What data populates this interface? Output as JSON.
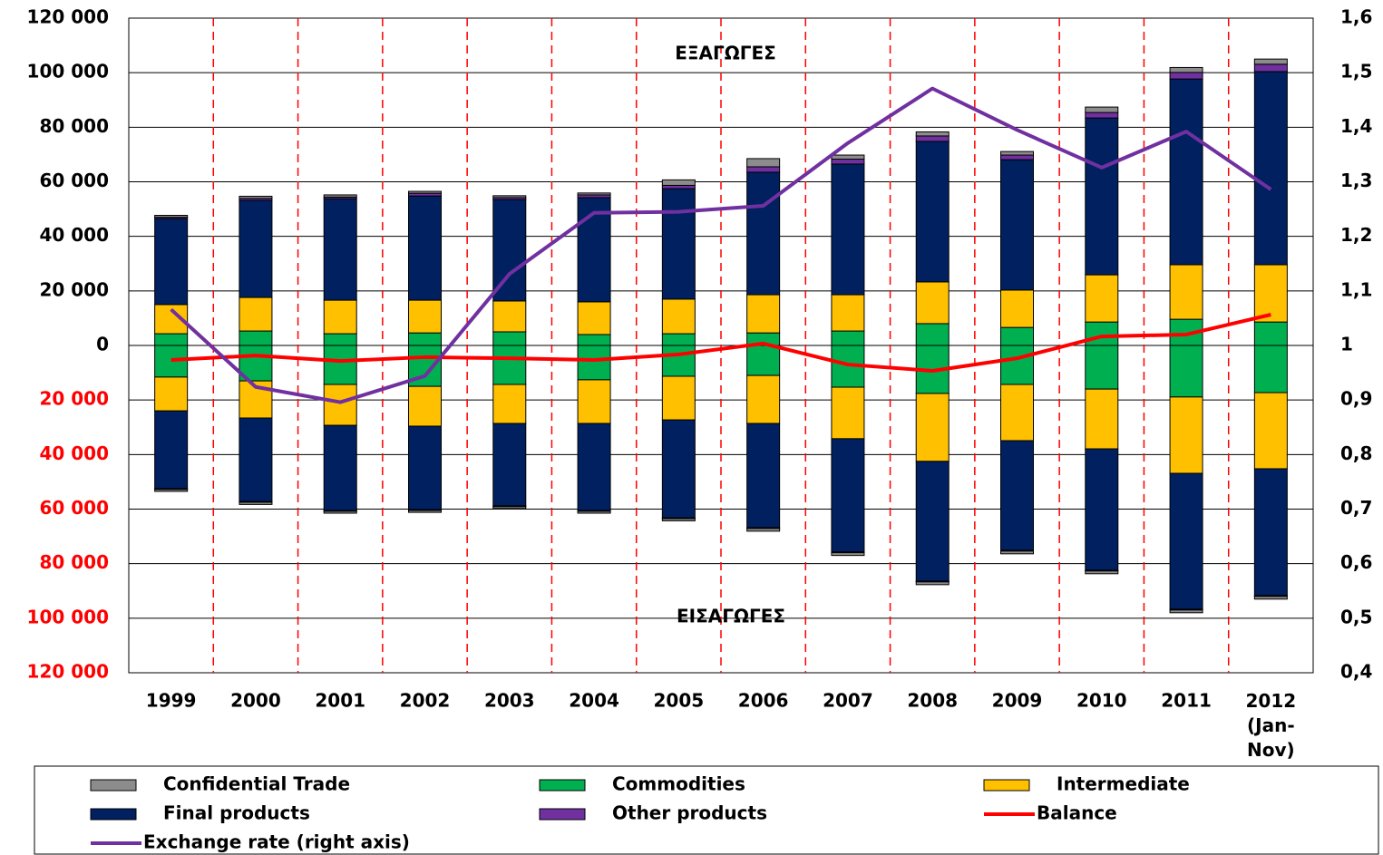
{
  "chart_data": {
    "type": "bar",
    "annotations": [
      "ΕΞΑΓΩΓΕΣ",
      "ΕΙΣΑΓΩΓΕΣ"
    ],
    "categories": [
      "1999",
      "2000",
      "2001",
      "2002",
      "2003",
      "2004",
      "2005",
      "2006",
      "2007",
      "2008",
      "2009",
      "2010",
      "2011",
      "2012 (Jan-Nov)"
    ],
    "ylim": [
      -120000,
      120000
    ],
    "yticks": [
      {
        "value": -120000,
        "label": "120 000"
      },
      {
        "value": -100000,
        "label": "100 000"
      },
      {
        "value": -80000,
        "label": "80 000"
      },
      {
        "value": -60000,
        "label": "60 000"
      },
      {
        "value": -40000,
        "label": "40 000"
      },
      {
        "value": -20000,
        "label": "20 000"
      },
      0,
      {
        "value": 20000,
        "label": "20 000"
      },
      {
        "value": 40000,
        "label": "40 000"
      },
      {
        "value": 60000,
        "label": "60 000"
      },
      {
        "value": 80000,
        "label": "80 000"
      },
      {
        "value": 100000,
        "label": "100 000"
      },
      {
        "value": 120000,
        "label": "120 000"
      }
    ],
    "y2lim": [
      0.4,
      1.6
    ],
    "y2ticks": [
      {
        "value": 0.4,
        "label": "0,4"
      },
      {
        "value": 0.5,
        "label": "0,5"
      },
      {
        "value": 0.6,
        "label": "0,6"
      },
      {
        "value": 0.7,
        "label": "0,7"
      },
      {
        "value": 0.8,
        "label": "0,8"
      },
      {
        "value": 0.9,
        "label": "0,9"
      },
      1,
      {
        "value": 1.1,
        "label": "1,1"
      },
      {
        "value": 1.2,
        "label": "1,2"
      },
      {
        "value": 1.3,
        "label": "1,3"
      },
      {
        "value": 1.4,
        "label": "1,4"
      },
      {
        "value": 1.5,
        "label": "1,5"
      },
      {
        "value": 1.6,
        "label": "1,6"
      }
    ],
    "grid": true,
    "series": [
      {
        "name": "Confidential Trade",
        "type": "bar",
        "color": "#8c8c8c",
        "values": [
          700,
          800,
          800,
          700,
          700,
          700,
          2000,
          3000,
          1500,
          1500,
          1300,
          2000,
          1800,
          1900
        ],
        "import_values": [
          -700,
          -800,
          -700,
          -700,
          -700,
          -700,
          -800,
          -1000,
          -1000,
          -1000,
          -1000,
          -1000,
          -1000,
          -1000
        ]
      },
      {
        "name": "Commodities",
        "type": "bar",
        "color": "#00b050",
        "values": [
          4300,
          5300,
          4300,
          4600,
          5000,
          4000,
          4300,
          4600,
          5300,
          8000,
          6600,
          8600,
          9600,
          8600
        ],
        "import_values": [
          -11600,
          -13000,
          -14300,
          -15000,
          -14300,
          -12600,
          -11300,
          -11000,
          -15300,
          -17600,
          -14300,
          -16000,
          -18900,
          -17300
        ]
      },
      {
        "name": "Intermediate",
        "type": "bar",
        "color": "#ffc000",
        "values": [
          10700,
          12300,
          12300,
          12000,
          11300,
          12000,
          12700,
          14000,
          13300,
          15300,
          13700,
          17300,
          20000,
          21000
        ],
        "import_values": [
          -12400,
          -13600,
          -15000,
          -14600,
          -14300,
          -16000,
          -16000,
          -17600,
          -18900,
          -24900,
          -20600,
          -21900,
          -28000,
          -27900
        ]
      },
      {
        "name": "Final products",
        "type": "bar",
        "color": "#002060",
        "values": [
          31500,
          35600,
          37200,
          38200,
          37200,
          38200,
          40500,
          44900,
          47900,
          51500,
          47800,
          57500,
          68100,
          70800
        ],
        "import_values": [
          -28500,
          -30600,
          -31200,
          -30600,
          -30200,
          -31900,
          -35900,
          -38200,
          -41500,
          -43900,
          -40200,
          -44500,
          -49800,
          -46500
        ]
      },
      {
        "name": "Other products",
        "type": "bar",
        "color": "#7030a0",
        "values": [
          500,
          700,
          600,
          1000,
          700,
          1000,
          1200,
          2000,
          1800,
          2000,
          1700,
          2000,
          2400,
          2700
        ],
        "import_values": [
          -300,
          -300,
          -300,
          -300,
          -300,
          -300,
          -300,
          -300,
          -300,
          -300,
          -300,
          -300,
          -300,
          -300
        ]
      },
      {
        "name": "Balance",
        "type": "line",
        "color": "#ff0000",
        "values": [
          -5300,
          -3700,
          -5700,
          -4300,
          -4700,
          -5300,
          -3300,
          700,
          -7000,
          -9300,
          -4700,
          3300,
          4000,
          11300
        ]
      },
      {
        "name": "Exchange rate (right axis)",
        "type": "line",
        "axis": "y2",
        "color": "#7030a0",
        "values": [
          1.066,
          0.924,
          0.896,
          0.944,
          1.131,
          1.243,
          1.245,
          1.256,
          1.371,
          1.471,
          1.395,
          1.326,
          1.392,
          1.286
        ]
      }
    ]
  }
}
